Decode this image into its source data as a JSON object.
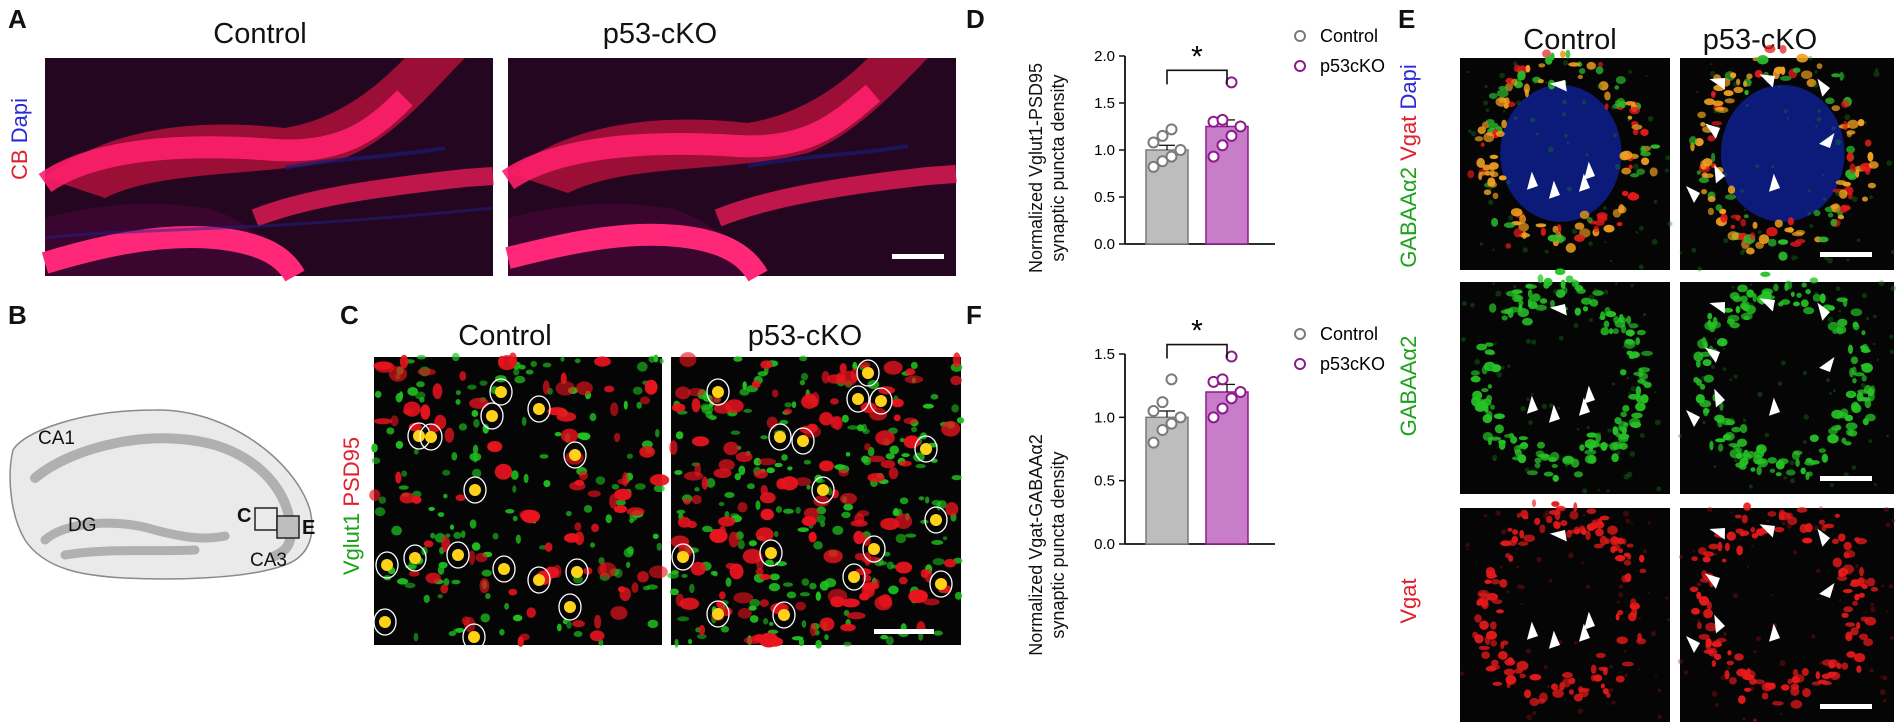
{
  "panel_letters": {
    "a": "A",
    "b": "B",
    "c": "C",
    "d": "D",
    "e": "E",
    "f": "F"
  },
  "panelA": {
    "titles": [
      "Control",
      "p53-cKO"
    ],
    "stain_label": [
      {
        "text": "CB ",
        "color": "#e0202c"
      },
      {
        "text": "Dapi",
        "color": "#2a2ad8"
      }
    ]
  },
  "panelB": {
    "regions": {
      "ca1": "CA1",
      "dg": "DG",
      "ca3": "CA3",
      "box_c": "C",
      "box_e": "E"
    }
  },
  "panelC": {
    "titles": [
      "Control",
      "p53-cKO"
    ],
    "stain_label": [
      {
        "text": "Vglut1 ",
        "color": "#1aa31a"
      },
      {
        "text": "PSD95",
        "color": "#e0202c"
      }
    ]
  },
  "panelE": {
    "titles": [
      "Control",
      "p53-cKO"
    ],
    "row_labels": [
      [
        {
          "text": "GABAAα2 ",
          "color": "#1aa31a"
        },
        {
          "text": "Vgat ",
          "color": "#e0202c"
        },
        {
          "text": "Dapi",
          "color": "#2a2ad8"
        }
      ],
      [
        {
          "text": "GABAAα2",
          "color": "#1aa31a"
        }
      ],
      [
        {
          "text": "Vgat",
          "color": "#e0202c"
        }
      ]
    ]
  },
  "colors": {
    "control_fill": "#bdbdbd",
    "control_edge": "#7a7a7a",
    "cko_fill": "#c77dc7",
    "cko_edge": "#8e1a8e"
  },
  "chart_data": [
    {
      "panel": "D",
      "type": "bar",
      "ylabel": "Normalized Vglut1-PSD95 synaptic puncta density",
      "ylim": [
        0,
        2.0
      ],
      "yticks": [
        "0.0",
        "0.5",
        "1.0",
        "1.5",
        "2.0"
      ],
      "significance": "*",
      "legend": [
        "Control",
        "p53cKO"
      ],
      "series": [
        {
          "name": "Control",
          "mean": 1.0,
          "sem": 0.05,
          "points": [
            0.82,
            0.88,
            0.93,
            1.0,
            1.08,
            1.15,
            1.22
          ]
        },
        {
          "name": "p53cKO",
          "mean": 1.25,
          "sem": 0.07,
          "points": [
            0.93,
            1.05,
            1.15,
            1.25,
            1.3,
            1.32,
            1.72
          ]
        }
      ]
    },
    {
      "panel": "F",
      "type": "bar",
      "ylabel": "Normalized Vgat-GABAAα2 synaptic puncta density",
      "ylim": [
        0,
        1.5
      ],
      "yticks": [
        "0.0",
        "0.5",
        "1.0",
        "1.5"
      ],
      "significance": "*",
      "legend": [
        "Control",
        "p53cKO"
      ],
      "series": [
        {
          "name": "Control",
          "mean": 1.0,
          "sem": 0.05,
          "points": [
            0.8,
            0.9,
            0.95,
            1.0,
            1.05,
            1.12,
            1.3
          ]
        },
        {
          "name": "p53cKO",
          "mean": 1.2,
          "sem": 0.06,
          "points": [
            1.0,
            1.07,
            1.15,
            1.2,
            1.28,
            1.3,
            1.48
          ]
        }
      ]
    }
  ]
}
